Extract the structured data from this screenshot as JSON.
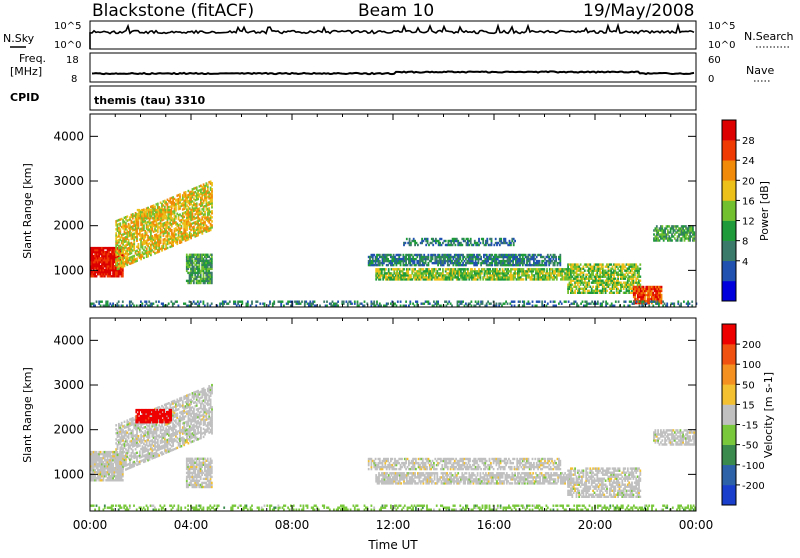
{
  "header": {
    "station": "Blackstone (fitACF)",
    "beam": "Beam 10",
    "date": "19/May/2008"
  },
  "strip_labels": {
    "nsky": "N.Sky",
    "nsky_ticks": [
      "10^5",
      "10^0"
    ],
    "nsearch": "N.Search",
    "nsearch_ticks": [
      "10^5",
      "10^0"
    ],
    "freq_label_top": "Freq.",
    "freq_label_bottom": "[MHz]",
    "freq_ticks": [
      "18",
      "8"
    ],
    "nave": "Nave",
    "nave_ticks": [
      "60",
      "0"
    ],
    "cpid": "CPID",
    "cpid_value": "themis (tau) 3310"
  },
  "chart_data": [
    {
      "type": "heatmap",
      "panel": "power",
      "ylabel": "Slant Range [km]",
      "yticks": [
        "1000",
        "2000",
        "3000",
        "4000"
      ],
      "ylim": [
        180,
        4500
      ],
      "xlim": [
        0,
        24
      ],
      "colorbar_label": "Power [dB]",
      "colorbar_ticks": [
        "28",
        "24",
        "20",
        "16",
        "12",
        "8",
        "4"
      ],
      "colorbar_colors": [
        "#0000dd",
        "#2050b0",
        "#3a7a6a",
        "#1e9a3a",
        "#72c030",
        "#ecc018",
        "#f08a08",
        "#f03a04",
        "#dd0000"
      ],
      "features": [
        {
          "t": [
            0.0,
            1.3
          ],
          "r": [
            850,
            1500
          ],
          "level": 8,
          "density": 0.95
        },
        {
          "t": [
            1.0,
            4.8
          ],
          "r": [
            1000,
            2100
          ],
          "level": 5,
          "density": 0.7,
          "slope": 900
        },
        {
          "t": [
            1.8,
            3.2
          ],
          "r": [
            2150,
            2350
          ],
          "level": 5,
          "density": 0.8
        },
        {
          "t": [
            3.8,
            4.8
          ],
          "r": [
            700,
            1350
          ],
          "level": 3,
          "density": 0.8
        },
        {
          "t": [
            11.0,
            18.6
          ],
          "r": [
            1100,
            1350
          ],
          "level": 2,
          "density": 0.75
        },
        {
          "t": [
            11.3,
            19.0
          ],
          "r": [
            780,
            1050
          ],
          "level": 4,
          "density": 0.8
        },
        {
          "t": [
            12.4,
            16.8
          ],
          "r": [
            1550,
            1700
          ],
          "level": 2,
          "density": 0.55
        },
        {
          "t": [
            18.9,
            21.8
          ],
          "r": [
            480,
            1150
          ],
          "level": 4,
          "density": 0.7
        },
        {
          "t": [
            21.5,
            22.6
          ],
          "r": [
            250,
            650
          ],
          "level": 7,
          "density": 0.9
        },
        {
          "t": [
            22.3,
            23.9
          ],
          "r": [
            1650,
            2000
          ],
          "level": 3,
          "density": 0.7
        },
        {
          "t": [
            0.0,
            24.0
          ],
          "r": [
            190,
            300
          ],
          "level": 2,
          "density": 0.35
        }
      ]
    },
    {
      "type": "heatmap",
      "panel": "velocity",
      "ylabel": "Slant Range [km]",
      "yticks": [
        "1000",
        "2000",
        "3000",
        "4000"
      ],
      "ylim": [
        180,
        4500
      ],
      "xlim": [
        0,
        24
      ],
      "xticks": [
        "00:00",
        "04:00",
        "08:00",
        "12:00",
        "16:00",
        "20:00",
        "00:00"
      ],
      "xlabel": "Time UT",
      "colorbar_label": "Velocity [m s-1]",
      "colorbar_ticks": [
        "200",
        "100",
        "50",
        "15",
        "-15",
        "-50",
        "-100",
        "-200"
      ],
      "colorbar_colors": [
        "#1a3fcc",
        "#2d62a8",
        "#3a8a4e",
        "#79c83c",
        "#c0c0c0",
        "#f2c030",
        "#f39020",
        "#f05010",
        "#ee0000"
      ],
      "features": [
        {
          "t": [
            0.0,
            1.3
          ],
          "r": [
            850,
            1500
          ],
          "level": 4,
          "density": 0.9
        },
        {
          "t": [
            1.0,
            4.8
          ],
          "r": [
            1000,
            2100
          ],
          "level": 4,
          "density": 0.65,
          "slope": 900
        },
        {
          "t": [
            1.8,
            3.2
          ],
          "r": [
            2150,
            2450
          ],
          "level": 8,
          "density": 0.85
        },
        {
          "t": [
            3.8,
            4.8
          ],
          "r": [
            700,
            1350
          ],
          "level": 4,
          "density": 0.75
        },
        {
          "t": [
            11.0,
            18.6
          ],
          "r": [
            1100,
            1350
          ],
          "level": 4,
          "density": 0.6
        },
        {
          "t": [
            11.3,
            19.0
          ],
          "r": [
            780,
            1050
          ],
          "level": 4,
          "density": 0.7
        },
        {
          "t": [
            18.9,
            21.8
          ],
          "r": [
            480,
            1150
          ],
          "level": 4,
          "density": 0.65
        },
        {
          "t": [
            22.3,
            23.9
          ],
          "r": [
            1650,
            2000
          ],
          "level": 4,
          "density": 0.65
        },
        {
          "t": [
            0.0,
            24.0
          ],
          "r": [
            190,
            300
          ],
          "level": 3,
          "density": 0.35
        }
      ]
    }
  ]
}
